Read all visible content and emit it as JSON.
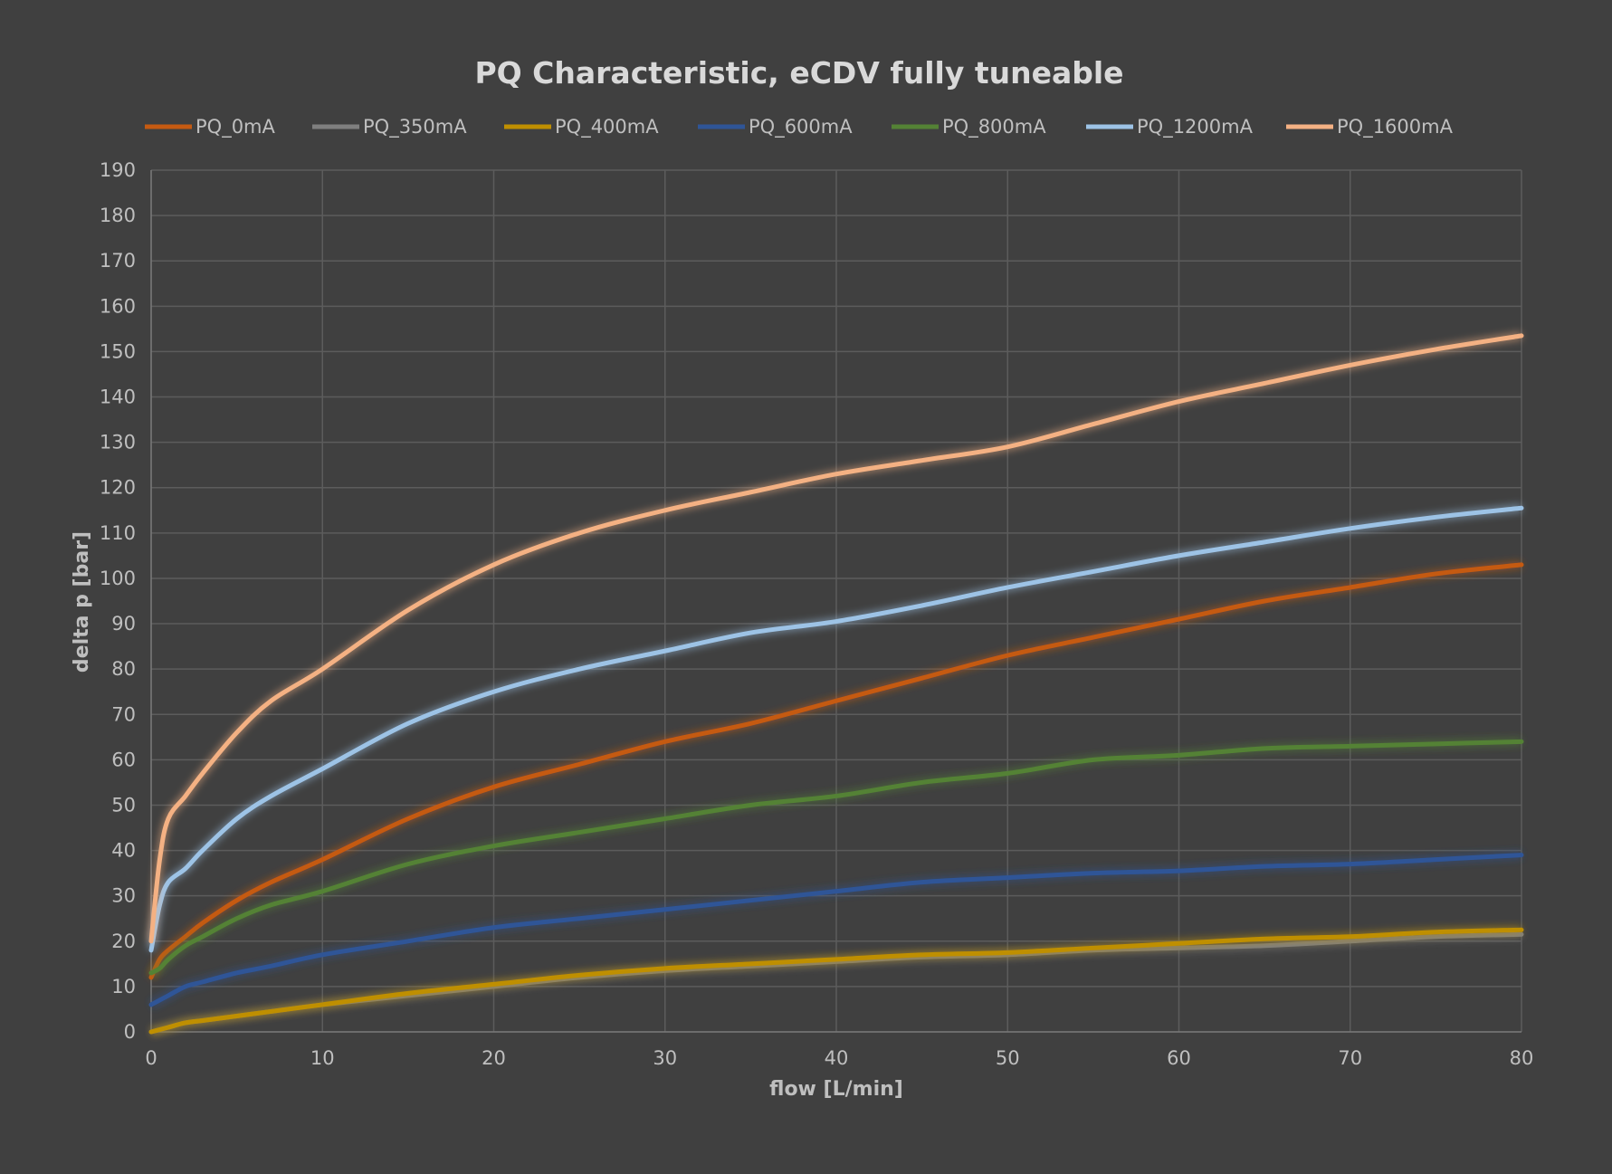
{
  "chart_data": {
    "type": "line",
    "title": "PQ Characteristic, eCDV fully tuneable",
    "xlabel": "flow [L/min]",
    "ylabel": "delta p [bar]",
    "xlim": [
      0,
      80
    ],
    "ylim": [
      0,
      190
    ],
    "xticks": [
      0,
      10,
      20,
      30,
      40,
      50,
      60,
      70,
      80
    ],
    "yticks": [
      0,
      10,
      20,
      30,
      40,
      50,
      60,
      70,
      80,
      90,
      100,
      110,
      120,
      130,
      140,
      150,
      160,
      170,
      180,
      190
    ],
    "grid": true,
    "legend_position": "top",
    "x": [
      0,
      0.5,
      1,
      2,
      3,
      5,
      7,
      10,
      15,
      20,
      25,
      30,
      35,
      40,
      45,
      50,
      55,
      60,
      65,
      70,
      75,
      80
    ],
    "series": [
      {
        "name": "PQ_0mA",
        "color": "#c55a11",
        "values": [
          12,
          16,
          18,
          21,
          24,
          29,
          33,
          38,
          47,
          54,
          59,
          64,
          68,
          73,
          78,
          83,
          87,
          91,
          95,
          98,
          101,
          103
        ]
      },
      {
        "name": "PQ_350mA",
        "color": "#7f7f7f",
        "values": [
          0,
          0.5,
          1,
          2,
          2.5,
          3.5,
          4.5,
          6,
          8,
          10,
          12,
          13.5,
          14.5,
          15.5,
          16.5,
          17,
          18,
          18.5,
          19,
          20,
          21,
          21.5
        ]
      },
      {
        "name": "PQ_400mA",
        "color": "#bf8f00",
        "values": [
          0,
          0.5,
          1,
          2,
          2.5,
          3.5,
          4.5,
          6,
          8.5,
          10.5,
          12.5,
          14,
          15,
          16,
          17,
          17.5,
          18.5,
          19.5,
          20.5,
          21,
          22,
          22.5
        ]
      },
      {
        "name": "PQ_600mA",
        "color": "#2f5597",
        "values": [
          6,
          7,
          8,
          10,
          11,
          13,
          14.5,
          17,
          20,
          23,
          25,
          27,
          29,
          31,
          33,
          34,
          35,
          35.5,
          36.5,
          37,
          38,
          39
        ]
      },
      {
        "name": "PQ_800mA",
        "color": "#548235",
        "values": [
          13,
          14,
          16,
          19,
          21,
          25,
          28,
          31,
          37,
          41,
          44,
          47,
          50,
          52,
          55,
          57,
          60,
          61,
          62.5,
          63,
          63.5,
          64
        ]
      },
      {
        "name": "PQ_1200mA",
        "color": "#9dc3e6",
        "values": [
          18,
          28,
          33,
          36,
          40,
          47,
          52,
          58,
          68,
          75,
          80,
          84,
          88,
          90.5,
          94,
          98,
          101.5,
          105,
          108,
          111,
          113.5,
          115.5
        ]
      },
      {
        "name": "PQ_1600mA",
        "color": "#f4b183",
        "values": [
          20,
          38,
          47,
          52,
          57,
          66,
          73,
          80,
          93,
          103,
          110,
          115,
          119,
          123,
          126,
          129,
          134,
          139,
          143,
          147,
          150.5,
          153.5
        ]
      }
    ]
  }
}
